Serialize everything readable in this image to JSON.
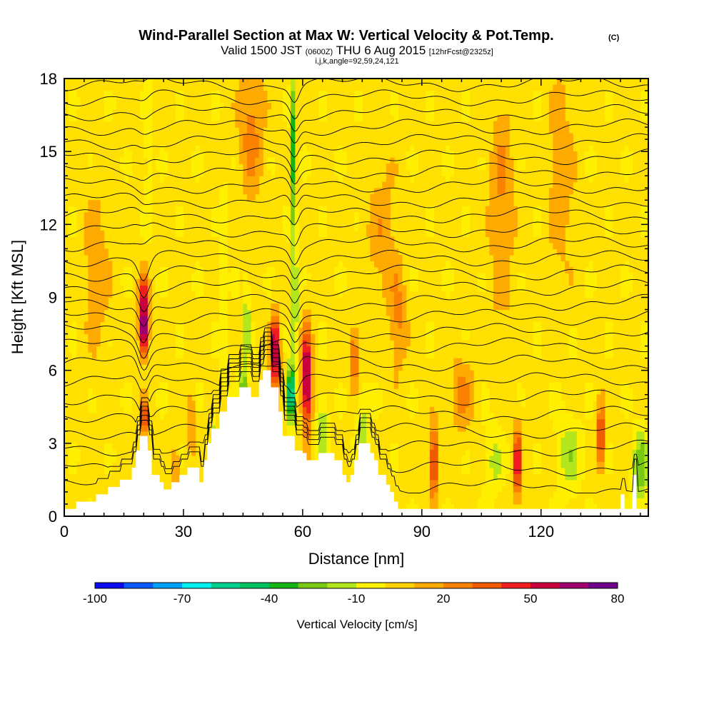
{
  "header": {
    "title": "Wind-Parallel Section at Max W: Vertical Velocity & Pot.Temp.",
    "copyright": "(C)",
    "valid_prefix": "Valid 1500 JST",
    "valid_utc": "(0600Z)",
    "valid_date": "THU 6 Aug 2015",
    "forecast": "[12hrFcst@2325z]",
    "indices": "i,j,k,angle=92,59,24,121"
  },
  "chart_data": {
    "type": "heatmap",
    "xlabel": "Distance [nm]",
    "ylabel": "Height [Kft MSL]",
    "xlim": [
      0,
      147
    ],
    "ylim": [
      0,
      18
    ],
    "x_ticks": [
      0,
      30,
      60,
      90,
      120
    ],
    "y_ticks": [
      0,
      3,
      6,
      9,
      12,
      15,
      18
    ],
    "colorbar": {
      "label": "Vertical Velocity [cm/s]",
      "tick_labels": [
        "-100",
        "-70",
        "-40",
        "-10",
        "20",
        "50",
        "80"
      ],
      "tick_values": [
        -100,
        -70,
        -40,
        -10,
        20,
        50,
        80
      ],
      "bin_edges": [
        -100,
        -90,
        -80,
        -70,
        -60,
        -50,
        -40,
        -30,
        -20,
        -10,
        0,
        10,
        20,
        30,
        40,
        50,
        60,
        70,
        80
      ],
      "colors": [
        "#0a0af0",
        "#0a5aff",
        "#00a0ff",
        "#00f0f0",
        "#00d08c",
        "#00c060",
        "#14b414",
        "#78c814",
        "#b4e61e",
        "#fff000",
        "#ffd200",
        "#ffaa00",
        "#fa8200",
        "#f05a00",
        "#f01e1e",
        "#c8003c",
        "#a0006e",
        "#6e008c"
      ]
    },
    "terrain_kft": [
      [
        0,
        0.3
      ],
      [
        3,
        0.3
      ],
      [
        3,
        0.6
      ],
      [
        8,
        0.6
      ],
      [
        8,
        0.9
      ],
      [
        11,
        0.9
      ],
      [
        11,
        1.2
      ],
      [
        14,
        1.2
      ],
      [
        14,
        1.5
      ],
      [
        17,
        1.5
      ],
      [
        17,
        2
      ],
      [
        18,
        2
      ],
      [
        18,
        2.7
      ],
      [
        19,
        2.7
      ],
      [
        19,
        3.3
      ],
      [
        21,
        3.3
      ],
      [
        21,
        2.7
      ],
      [
        22,
        2.7
      ],
      [
        22,
        1.7
      ],
      [
        24,
        1.7
      ],
      [
        24,
        1.4
      ],
      [
        25,
        1.4
      ],
      [
        25,
        1.1
      ],
      [
        27,
        1.1
      ],
      [
        27,
        1.4
      ],
      [
        29,
        1.4
      ],
      [
        29,
        1.7
      ],
      [
        31,
        1.7
      ],
      [
        31,
        2
      ],
      [
        34,
        2
      ],
      [
        34,
        1.4
      ],
      [
        35,
        1.4
      ],
      [
        35,
        2.3
      ],
      [
        36,
        2.3
      ],
      [
        36,
        3
      ],
      [
        37,
        3
      ],
      [
        37,
        3.6
      ],
      [
        39,
        3.6
      ],
      [
        39,
        4.3
      ],
      [
        41,
        4.3
      ],
      [
        41,
        4.9
      ],
      [
        44,
        4.9
      ],
      [
        44,
        5.3
      ],
      [
        47,
        5.3
      ],
      [
        47,
        4.9
      ],
      [
        49,
        4.9
      ],
      [
        49,
        5.6
      ],
      [
        50,
        5.6
      ],
      [
        50,
        6
      ],
      [
        52,
        6
      ],
      [
        52,
        5.3
      ],
      [
        54,
        5.3
      ],
      [
        54,
        4.3
      ],
      [
        55,
        4.3
      ],
      [
        55,
        3.3
      ],
      [
        58,
        3.3
      ],
      [
        58,
        2.7
      ],
      [
        60,
        2.7
      ],
      [
        60,
        2.6
      ],
      [
        61,
        2.6
      ],
      [
        61,
        2.3
      ],
      [
        64,
        2.3
      ],
      [
        64,
        2.6
      ],
      [
        68,
        2.6
      ],
      [
        68,
        2.3
      ],
      [
        70,
        2.3
      ],
      [
        70,
        1.7
      ],
      [
        71,
        1.7
      ],
      [
        71,
        1.4
      ],
      [
        72,
        1.4
      ],
      [
        72,
        1.7
      ],
      [
        73,
        1.7
      ],
      [
        73,
        2.3
      ],
      [
        74,
        2.3
      ],
      [
        74,
        3
      ],
      [
        77,
        3
      ],
      [
        77,
        2.6
      ],
      [
        78,
        2.6
      ],
      [
        78,
        2.3
      ],
      [
        79,
        2.3
      ],
      [
        79,
        1.7
      ],
      [
        81,
        1.7
      ],
      [
        81,
        1.3
      ],
      [
        82,
        1.3
      ],
      [
        82,
        1
      ],
      [
        83,
        1
      ],
      [
        83,
        0.6
      ],
      [
        84,
        0.6
      ],
      [
        84,
        0.3
      ],
      [
        140,
        0.3
      ],
      [
        140,
        0.9
      ],
      [
        141,
        0.9
      ],
      [
        141,
        0.3
      ],
      [
        143,
        0.3
      ],
      [
        143,
        1.7
      ],
      [
        144,
        1.7
      ],
      [
        144,
        0.3
      ],
      [
        147,
        0.3
      ]
    ],
    "isentrope_base_heights_kft": [
      1.2,
      2.0,
      2.8,
      3.5,
      4.2,
      4.9,
      5.6,
      6.3,
      7.0,
      7.6,
      8.2,
      8.8,
      9.4,
      10.0,
      10.6,
      11.2,
      11.8,
      12.4,
      13.0,
      13.6,
      14.2,
      14.8,
      15.4,
      16.0,
      16.6,
      17.2,
      17.8
    ]
  }
}
